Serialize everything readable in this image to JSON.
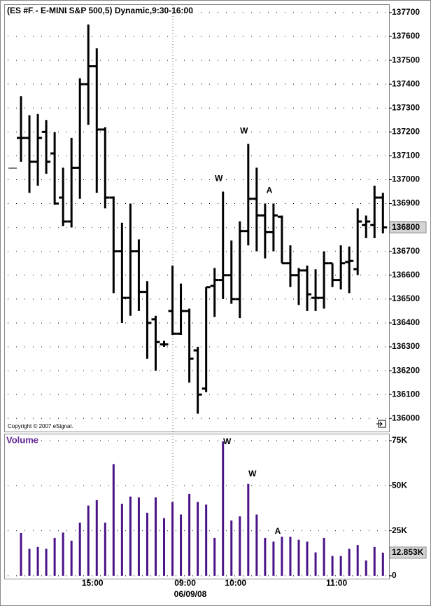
{
  "chart_data": [
    {
      "type": "ohlc",
      "title": "(ES #F - E-MINI S&P 500,5) Dynamic,9:30-16:00",
      "copyright": "Copyright © 2007 eSignal.",
      "color": "#000000",
      "open": [
        137175,
        137175,
        137075,
        137200,
        137110,
        136925,
        136825,
        137050,
        137400,
        137475,
        137210,
        136925,
        136700,
        136505,
        136700,
        136530,
        136415,
        136310,
        136450,
        136355,
        136450,
        136285,
        136125,
        136555,
        136580,
        136600,
        136500,
        136785,
        136920,
        136850,
        136780,
        136845,
        136650,
        136600,
        136620,
        136505,
        136505,
        136650,
        136580,
        136655,
        136625,
        136810,
        136810,
        136925
      ],
      "high": [
        137350,
        137270,
        137275,
        137250,
        137200,
        137050,
        137175,
        137425,
        137650,
        137550,
        137220,
        136930,
        136820,
        136900,
        136750,
        136575,
        136430,
        136325,
        136640,
        136565,
        136460,
        136300,
        136550,
        136630,
        136950,
        136745,
        136825,
        137150,
        137050,
        136900,
        136900,
        136850,
        136725,
        136630,
        136640,
        136625,
        136700,
        136650,
        136725,
        136720,
        136880,
        136850,
        136975,
        136945
      ],
      "low": [
        137075,
        136945,
        136975,
        137025,
        136895,
        136805,
        136800,
        136920,
        137230,
        136945,
        136880,
        136525,
        136400,
        136430,
        136450,
        136250,
        136200,
        136300,
        136350,
        136350,
        136150,
        136020,
        136110,
        136425,
        136500,
        136480,
        136420,
        136725,
        136700,
        136670,
        136700,
        136650,
        136550,
        136475,
        136450,
        136450,
        136460,
        136550,
        136540,
        136525,
        136600,
        136755,
        136755,
        136775
      ],
      "close": [
        137175,
        137075,
        137175,
        137075,
        136900,
        136825,
        137050,
        137400,
        137475,
        137210,
        136925,
        136700,
        136505,
        136700,
        136530,
        136400,
        136320,
        136310,
        136355,
        136450,
        136250,
        136100,
        136550,
        136580,
        136600,
        136500,
        136785,
        136920,
        136850,
        136780,
        136850,
        136650,
        136600,
        136620,
        136520,
        136505,
        136650,
        136580,
        136650,
        136660,
        136825,
        136825,
        136925,
        136800
      ],
      "ylim": [
        135945,
        137735
      ],
      "yticks": [
        136000,
        136100,
        136200,
        136300,
        136400,
        136500,
        136600,
        136700,
        136800,
        136900,
        137000,
        137100,
        137200,
        137300,
        137400,
        137500,
        137600,
        137700
      ],
      "grid": true,
      "annotations": [
        {
          "text": "W",
          "index": 24
        },
        {
          "text": "W",
          "index": 27
        },
        {
          "text": "A",
          "index": 30
        }
      ]
    },
    {
      "type": "bar",
      "title": "Volume",
      "categories": [
        null,
        null,
        null,
        null,
        null,
        null,
        null,
        null,
        "15:00",
        null,
        null,
        null,
        null,
        null,
        null,
        null,
        null,
        null,
        null,
        "09:00",
        null,
        null,
        null,
        null,
        null,
        "10:00",
        null,
        null,
        null,
        null,
        null,
        null,
        null,
        null,
        null,
        null,
        null,
        "11:00",
        null,
        null,
        null,
        null,
        null,
        null
      ],
      "date_label": "06/09/08",
      "color": "#4b1388",
      "values": [
        23700,
        15000,
        16000,
        15000,
        21000,
        24000,
        19500,
        29500,
        39000,
        42000,
        29500,
        62000,
        40000,
        44000,
        43500,
        35000,
        43500,
        32000,
        41000,
        34000,
        45500,
        41000,
        39500,
        21000,
        74600,
        30700,
        33000,
        51000,
        34000,
        21000,
        19000,
        21700,
        21700,
        20000,
        19000,
        13000,
        21000,
        11000,
        11000,
        15000,
        17000,
        8500,
        16000,
        12853
      ],
      "value_labels": [
        null,
        null,
        null,
        null,
        null,
        null,
        null,
        null,
        null,
        null,
        null,
        null,
        null,
        null,
        null,
        null,
        null,
        null,
        null,
        null,
        null,
        null,
        null,
        null,
        null,
        null,
        null,
        null,
        null,
        null,
        null,
        null,
        null,
        null,
        null,
        null,
        null,
        null,
        null,
        null,
        null,
        null,
        null,
        "12.853K"
      ],
      "ylim": [
        -1600,
        78900
      ],
      "yticks": [
        0,
        {
          "value": 25000,
          "label": "25K"
        },
        {
          "value": 50000,
          "label": "50K"
        },
        {
          "value": 75000,
          "label": "75K"
        }
      ],
      "grid": true,
      "annotations": [
        {
          "text": "W",
          "index": 24
        },
        {
          "text": "W",
          "index": 27
        },
        {
          "text": "A",
          "index": 30
        }
      ]
    }
  ]
}
